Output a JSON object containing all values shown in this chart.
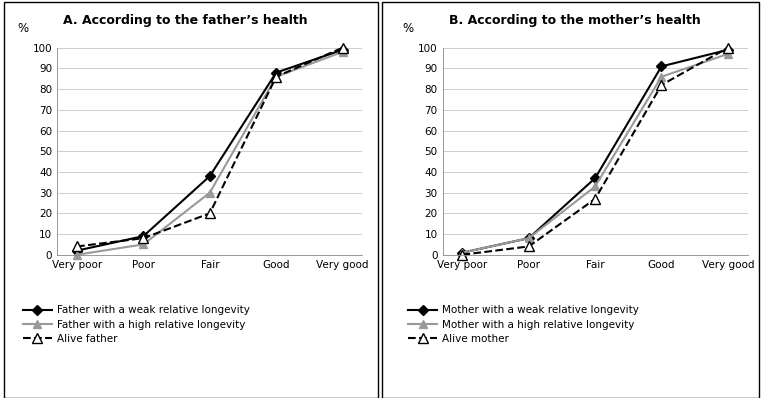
{
  "categories": [
    "Very poor",
    "Poor",
    "Fair",
    "Good",
    "Very good"
  ],
  "panel_A": {
    "title": "A. According to the father’s health",
    "series": [
      {
        "label": "Father with a weak relative longevity",
        "values": [
          2,
          9,
          38,
          88,
          99
        ],
        "color": "#000000",
        "linestyle": "-",
        "marker": "D",
        "markersize": 5,
        "linewidth": 1.5
      },
      {
        "label": "Father with a high relative longevity",
        "values": [
          0,
          5,
          30,
          86,
          98
        ],
        "color": "#999999",
        "linestyle": "-",
        "marker": "^",
        "markersize": 6,
        "linewidth": 1.5
      },
      {
        "label": "Alive father",
        "values": [
          4,
          8,
          20,
          86,
          100
        ],
        "color": "#000000",
        "linestyle": "--",
        "marker": "^",
        "markersize": 7,
        "linewidth": 1.5,
        "markerfacecolor": "white"
      }
    ]
  },
  "panel_B": {
    "title": "B. According to the mother’s health",
    "series": [
      {
        "label": "Mother with a weak relative longevity",
        "values": [
          1,
          8,
          37,
          91,
          99
        ],
        "color": "#000000",
        "linestyle": "-",
        "marker": "D",
        "markersize": 5,
        "linewidth": 1.5
      },
      {
        "label": "Mother with a high relative longevity",
        "values": [
          1,
          8,
          33,
          86,
          97
        ],
        "color": "#999999",
        "linestyle": "-",
        "marker": "^",
        "markersize": 6,
        "linewidth": 1.5
      },
      {
        "label": "Alive mother",
        "values": [
          0,
          4,
          27,
          82,
          100
        ],
        "color": "#000000",
        "linestyle": "--",
        "marker": "^",
        "markersize": 7,
        "linewidth": 1.5,
        "markerfacecolor": "white"
      }
    ]
  },
  "ylim": [
    0,
    100
  ],
  "yticks": [
    0,
    10,
    20,
    30,
    40,
    50,
    60,
    70,
    80,
    90,
    100
  ],
  "ylabel": "%",
  "background_color": "#ffffff",
  "title_fontsize": 9,
  "tick_fontsize": 7.5,
  "legend_fontsize": 7.5
}
